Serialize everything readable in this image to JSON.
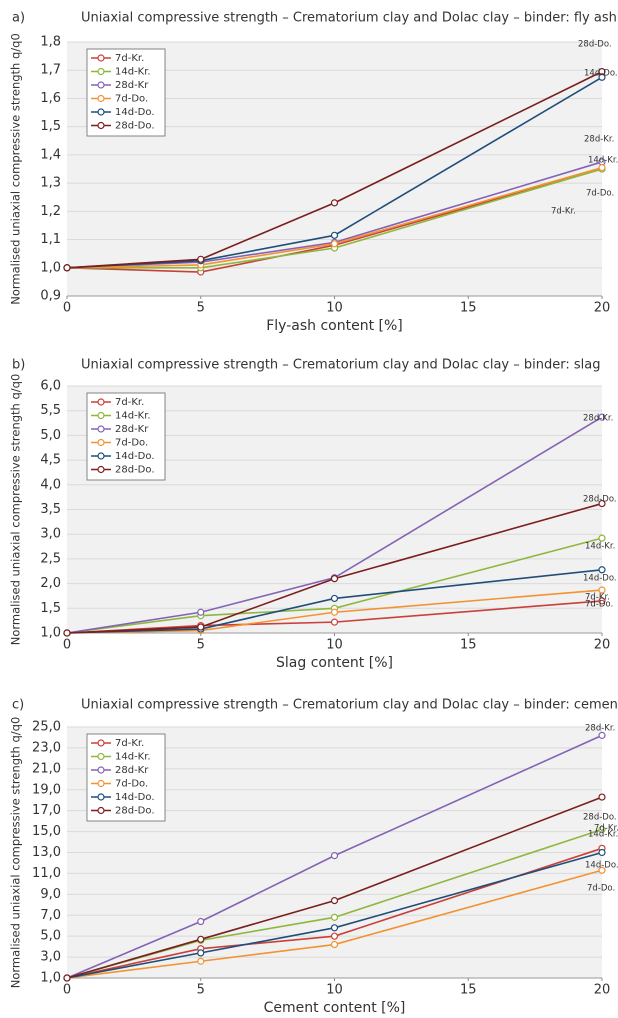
{
  "chart_data": [
    {
      "type": "line",
      "panel": "a)",
      "title": "Uniaxial compressive strength – Crematorium clay and Dolac clay – binder: fly ash",
      "xlabel": "Fly-ash content [%]",
      "ylabel": "Normalised uniaxial compressive strength q/q0",
      "x": [
        0,
        5,
        10,
        20
      ],
      "xlim": [
        0,
        20
      ],
      "xticks": [
        0,
        5,
        10,
        15,
        20
      ],
      "ylim": [
        0.9,
        1.8
      ],
      "yticks": [
        {
          "value": 0.9,
          "label": "0,9"
        },
        {
          "value": 1.0,
          "label": "1,0"
        },
        {
          "value": 1.1,
          "label": "1,1"
        },
        {
          "value": 1.2,
          "label": "1,2"
        },
        {
          "value": 1.3,
          "label": "1,3"
        },
        {
          "value": 1.4,
          "label": "1,4"
        },
        {
          "value": 1.5,
          "label": "1,5"
        },
        {
          "value": 1.6,
          "label": "1,6"
        },
        {
          "value": 1.7,
          "label": "1,7"
        },
        {
          "value": 1.8,
          "label": "1,8"
        }
      ],
      "grid": true,
      "legend": "upper left",
      "series": [
        {
          "name": "7d-Kr.",
          "color": "#c9403a",
          "values": [
            1.0,
            0.985,
            1.08,
            1.35
          ]
        },
        {
          "name": "14d-Kr.",
          "color": "#8db83d",
          "values": [
            1.0,
            1.0,
            1.07,
            1.35
          ]
        },
        {
          "name": "28d-Kr",
          "color": "#8463b5",
          "values": [
            1.0,
            1.02,
            1.09,
            1.375
          ]
        },
        {
          "name": "7d-Do.",
          "color": "#f39233",
          "values": [
            1.0,
            1.01,
            1.085,
            1.355
          ]
        },
        {
          "name": "14d-Do.",
          "color": "#1f4e7a",
          "values": [
            1.0,
            1.025,
            1.115,
            1.675
          ]
        },
        {
          "name": "28d-Do.",
          "color": "#7a1e1e",
          "values": [
            1.0,
            1.03,
            1.23,
            1.695
          ]
        }
      ],
      "annotations": [
        "28d-Do.",
        "14d-Do.",
        "28d-Kr.",
        "14d-Kr.",
        "7d-Do.",
        "7d-Kr."
      ]
    },
    {
      "type": "line",
      "panel": "b)",
      "title": "Uniaxial compressive strength – Crematorium clay and Dolac clay – binder: slag",
      "xlabel": "Slag content [%]",
      "ylabel": "Normalised uniaxial compressive strength q/q0",
      "x": [
        0,
        5,
        10,
        20
      ],
      "xlim": [
        0,
        20
      ],
      "xticks": [
        0,
        5,
        10,
        15,
        20
      ],
      "ylim": [
        1.0,
        6.0
      ],
      "yticks": [
        {
          "value": 1.0,
          "label": "1,0"
        },
        {
          "value": 1.5,
          "label": "1,5"
        },
        {
          "value": 2.0,
          "label": "2,0"
        },
        {
          "value": 2.5,
          "label": "2,5"
        },
        {
          "value": 3.0,
          "label": "3,0"
        },
        {
          "value": 3.5,
          "label": "3,5"
        },
        {
          "value": 4.0,
          "label": "4,0"
        },
        {
          "value": 4.5,
          "label": "4,5"
        },
        {
          "value": 5.0,
          "label": "5,0"
        },
        {
          "value": 5.5,
          "label": "5,5"
        },
        {
          "value": 6.0,
          "label": "6,0"
        }
      ],
      "grid": true,
      "legend": "upper left",
      "series": [
        {
          "name": "7d-Kr.",
          "color": "#c9403a",
          "values": [
            1.0,
            1.15,
            1.22,
            1.65
          ]
        },
        {
          "name": "14d-Kr.",
          "color": "#8db83d",
          "values": [
            1.0,
            1.35,
            1.5,
            2.92
          ]
        },
        {
          "name": "28d-Kr",
          "color": "#8463b5",
          "values": [
            1.0,
            1.42,
            2.12,
            5.37
          ]
        },
        {
          "name": "7d-Do.",
          "color": "#f39233",
          "values": [
            1.0,
            1.05,
            1.42,
            1.87
          ]
        },
        {
          "name": "14d-Do.",
          "color": "#1f4e7a",
          "values": [
            1.0,
            1.08,
            1.7,
            2.28
          ]
        },
        {
          "name": "28d-Do.",
          "color": "#7a1e1e",
          "values": [
            1.0,
            1.12,
            2.1,
            3.62
          ]
        }
      ],
      "annotations": [
        "28d-Kr.",
        "28d-Do.",
        "14d-Kr.",
        "14d-Do.",
        "7d-Kr.",
        "7d-Do."
      ]
    },
    {
      "type": "line",
      "panel": "c)",
      "title": "Uniaxial compressive strength – Crematorium clay and Dolac clay – binder: cement",
      "xlabel": "Cement content [%]",
      "ylabel": "Normalised uniaxial compressive strength q/q0",
      "x": [
        0,
        5,
        10,
        20
      ],
      "xlim": [
        0,
        20
      ],
      "xticks": [
        0,
        5,
        10,
        15,
        20
      ],
      "ylim": [
        1.0,
        25.0
      ],
      "yticks": [
        {
          "value": 1,
          "label": "1,0"
        },
        {
          "value": 3,
          "label": "3,0"
        },
        {
          "value": 5,
          "label": "5,0"
        },
        {
          "value": 7,
          "label": "7,0"
        },
        {
          "value": 9,
          "label": "9,0"
        },
        {
          "value": 11,
          "label": "11,0"
        },
        {
          "value": 13,
          "label": "13,0"
        },
        {
          "value": 15,
          "label": "15,0"
        },
        {
          "value": 17,
          "label": "17,0"
        },
        {
          "value": 19,
          "label": "19,0"
        },
        {
          "value": 21,
          "label": "21,0"
        },
        {
          "value": 23,
          "label": "23,0"
        },
        {
          "value": 25,
          "label": "25,0"
        }
      ],
      "grid": true,
      "legend": "upper left",
      "series": [
        {
          "name": "7d-Kr.",
          "color": "#c9403a",
          "values": [
            1.0,
            3.8,
            5.0,
            13.4
          ]
        },
        {
          "name": "14d-Kr.",
          "color": "#8db83d",
          "values": [
            1.0,
            4.6,
            6.8,
            15.2
          ]
        },
        {
          "name": "28d-Kr",
          "color": "#8463b5",
          "values": [
            1.0,
            6.4,
            12.7,
            24.2
          ]
        },
        {
          "name": "7d-Do.",
          "color": "#f39233",
          "values": [
            1.0,
            2.6,
            4.2,
            11.3
          ]
        },
        {
          "name": "14d-Do.",
          "color": "#1f4e7a",
          "values": [
            1.0,
            3.4,
            5.8,
            13.0
          ]
        },
        {
          "name": "28d-Do.",
          "color": "#7a1e1e",
          "values": [
            1.0,
            4.7,
            8.4,
            18.3
          ]
        }
      ],
      "annotations": [
        "28d-Kr.",
        "28d-Do.",
        "7d-Kr.",
        "14d-Kr.",
        "14d-Do.",
        "7d-Do."
      ]
    }
  ]
}
